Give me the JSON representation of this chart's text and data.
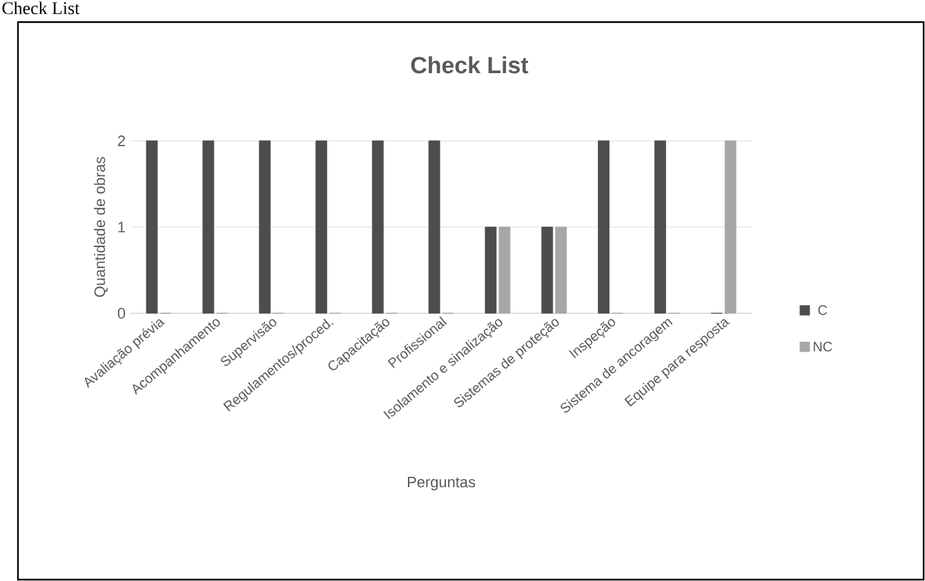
{
  "chart_data": {
    "type": "bar",
    "title": "Check List",
    "xlabel": "Perguntas",
    "ylabel": "Quantidade de obras",
    "annotations": [
      "Check List"
    ],
    "categories": [
      "Avaliação prévia",
      "Acompanhamento",
      "Supervisão",
      "Regulamentos/proced.",
      "Capacitação",
      "Profissional",
      "Isolamento e sinalização",
      "Sistemas de proteção",
      "Inspeção",
      "Sistema de ancoragem",
      "Equipe para resposta"
    ],
    "series": [
      {
        "name": "C",
        "color": "#4d4d4d",
        "values": [
          2,
          2,
          2,
          2,
          2,
          2,
          1,
          1,
          2,
          2,
          0
        ]
      },
      {
        "name": "NC",
        "color": "#a6a6a6",
        "values": [
          0,
          0,
          0,
          0,
          0,
          0,
          1,
          1,
          0,
          0,
          2
        ]
      }
    ],
    "ylim": [
      0,
      2
    ],
    "yticks": [
      0,
      1,
      2
    ],
    "grid": "y",
    "legend": "right"
  }
}
